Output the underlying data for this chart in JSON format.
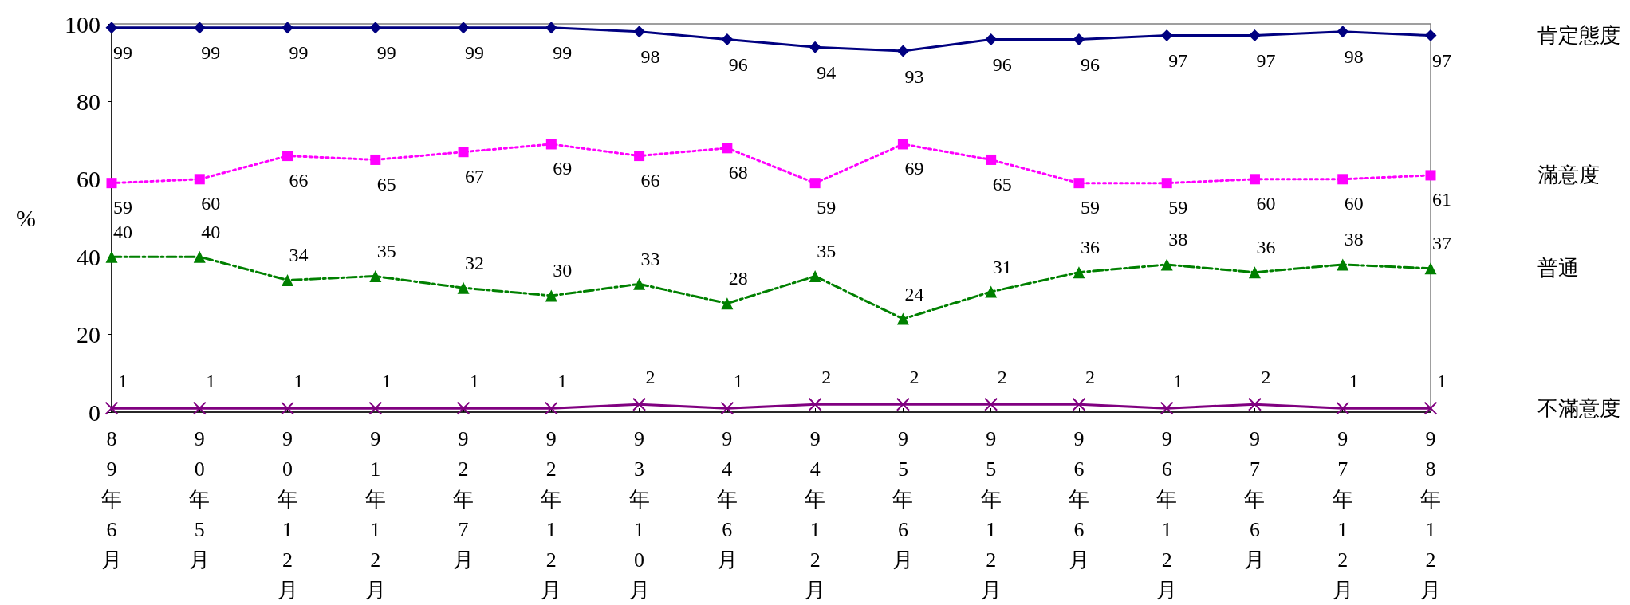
{
  "chart_data": {
    "type": "line",
    "ylabel": "%",
    "categories": [
      "89年6月",
      "90年5月",
      "90年12月",
      "91年12月",
      "92年7月",
      "92年12月",
      "93年10月",
      "94年6月",
      "94年12月",
      "95年6月",
      "95年12月",
      "96年6月",
      "96年12月",
      "97年6月",
      "97年12月",
      "98年12月"
    ],
    "series": [
      {
        "name": "肯定態度",
        "color": "#000080",
        "marker": "diamond",
        "line_style": "solid",
        "values": [
          99,
          99,
          99,
          99,
          99,
          99,
          98,
          96,
          94,
          93,
          96,
          96,
          97,
          97,
          98,
          97
        ]
      },
      {
        "name": "滿意度",
        "color": "#ff00ff",
        "marker": "square",
        "line_style": "dotted",
        "values": [
          59,
          60,
          66,
          65,
          67,
          69,
          66,
          68,
          59,
          69,
          65,
          59,
          59,
          60,
          60,
          61
        ]
      },
      {
        "name": "普通",
        "color": "#008000",
        "marker": "triangle",
        "line_style": "dashed",
        "values": [
          40,
          40,
          34,
          35,
          32,
          30,
          33,
          28,
          35,
          24,
          31,
          36,
          38,
          36,
          38,
          37
        ]
      },
      {
        "name": "不滿意度",
        "color": "#800080",
        "marker": "cross",
        "line_style": "solid",
        "values": [
          1,
          1,
          1,
          1,
          1,
          1,
          2,
          1,
          2,
          2,
          2,
          2,
          1,
          2,
          1,
          1
        ]
      }
    ],
    "ylim": [
      0,
      100
    ],
    "yticks": [
      0,
      20,
      40,
      60,
      80,
      100
    ],
    "grid": false,
    "legend": "right",
    "data_labels": true
  }
}
